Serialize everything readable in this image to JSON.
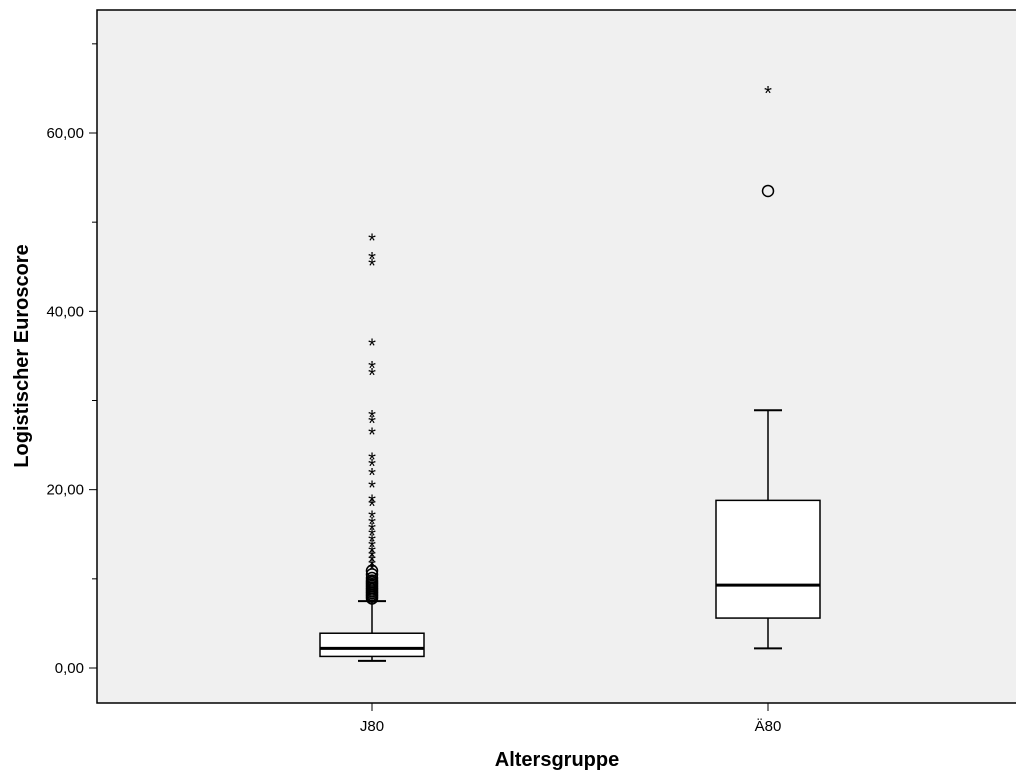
{
  "chart_data": {
    "type": "boxplot",
    "title": "",
    "xlabel": "Altersgruppe",
    "ylabel": "Logistischer Euroscore",
    "ylim": [
      -4,
      74
    ],
    "yticks": [
      0,
      20,
      40,
      60
    ],
    "ytick_labels": [
      "0,00",
      "20,00",
      "40,00",
      "60,00"
    ],
    "categories": [
      "J80",
      "Ä80"
    ],
    "boxes": [
      {
        "category": "J80",
        "whisker_low": 0.8,
        "q1": 1.3,
        "median": 2.2,
        "q3": 3.9,
        "whisker_high": 7.5,
        "outliers_circle": [
          7.8,
          8.0,
          8.2,
          8.4,
          8.6,
          8.8,
          9.0,
          9.2,
          9.4,
          9.6,
          9.8,
          10.1,
          10.5,
          10.9
        ],
        "outliers_extreme": [
          11.3,
          11.8,
          12.3,
          12.8,
          13.3,
          13.9,
          14.5,
          15.2,
          15.8,
          16.5,
          17.2,
          18.5,
          19.0,
          20.6,
          22.0,
          23.0,
          23.7,
          26.5,
          27.8,
          28.5,
          33.2,
          34.0,
          36.5,
          45.5,
          46.2,
          48.3
        ]
      },
      {
        "category": "Ä80",
        "whisker_low": 2.2,
        "q1": 5.6,
        "median": 9.3,
        "q3": 18.8,
        "whisker_high": 28.9,
        "outliers_circle": [
          53.5
        ],
        "outliers_extreme": [
          64.8
        ]
      }
    ],
    "colors": {
      "plot_background": "#f0f0f0",
      "box_fill": "#ffffff",
      "stroke": "#000000"
    },
    "grid": false,
    "legend": "none"
  }
}
